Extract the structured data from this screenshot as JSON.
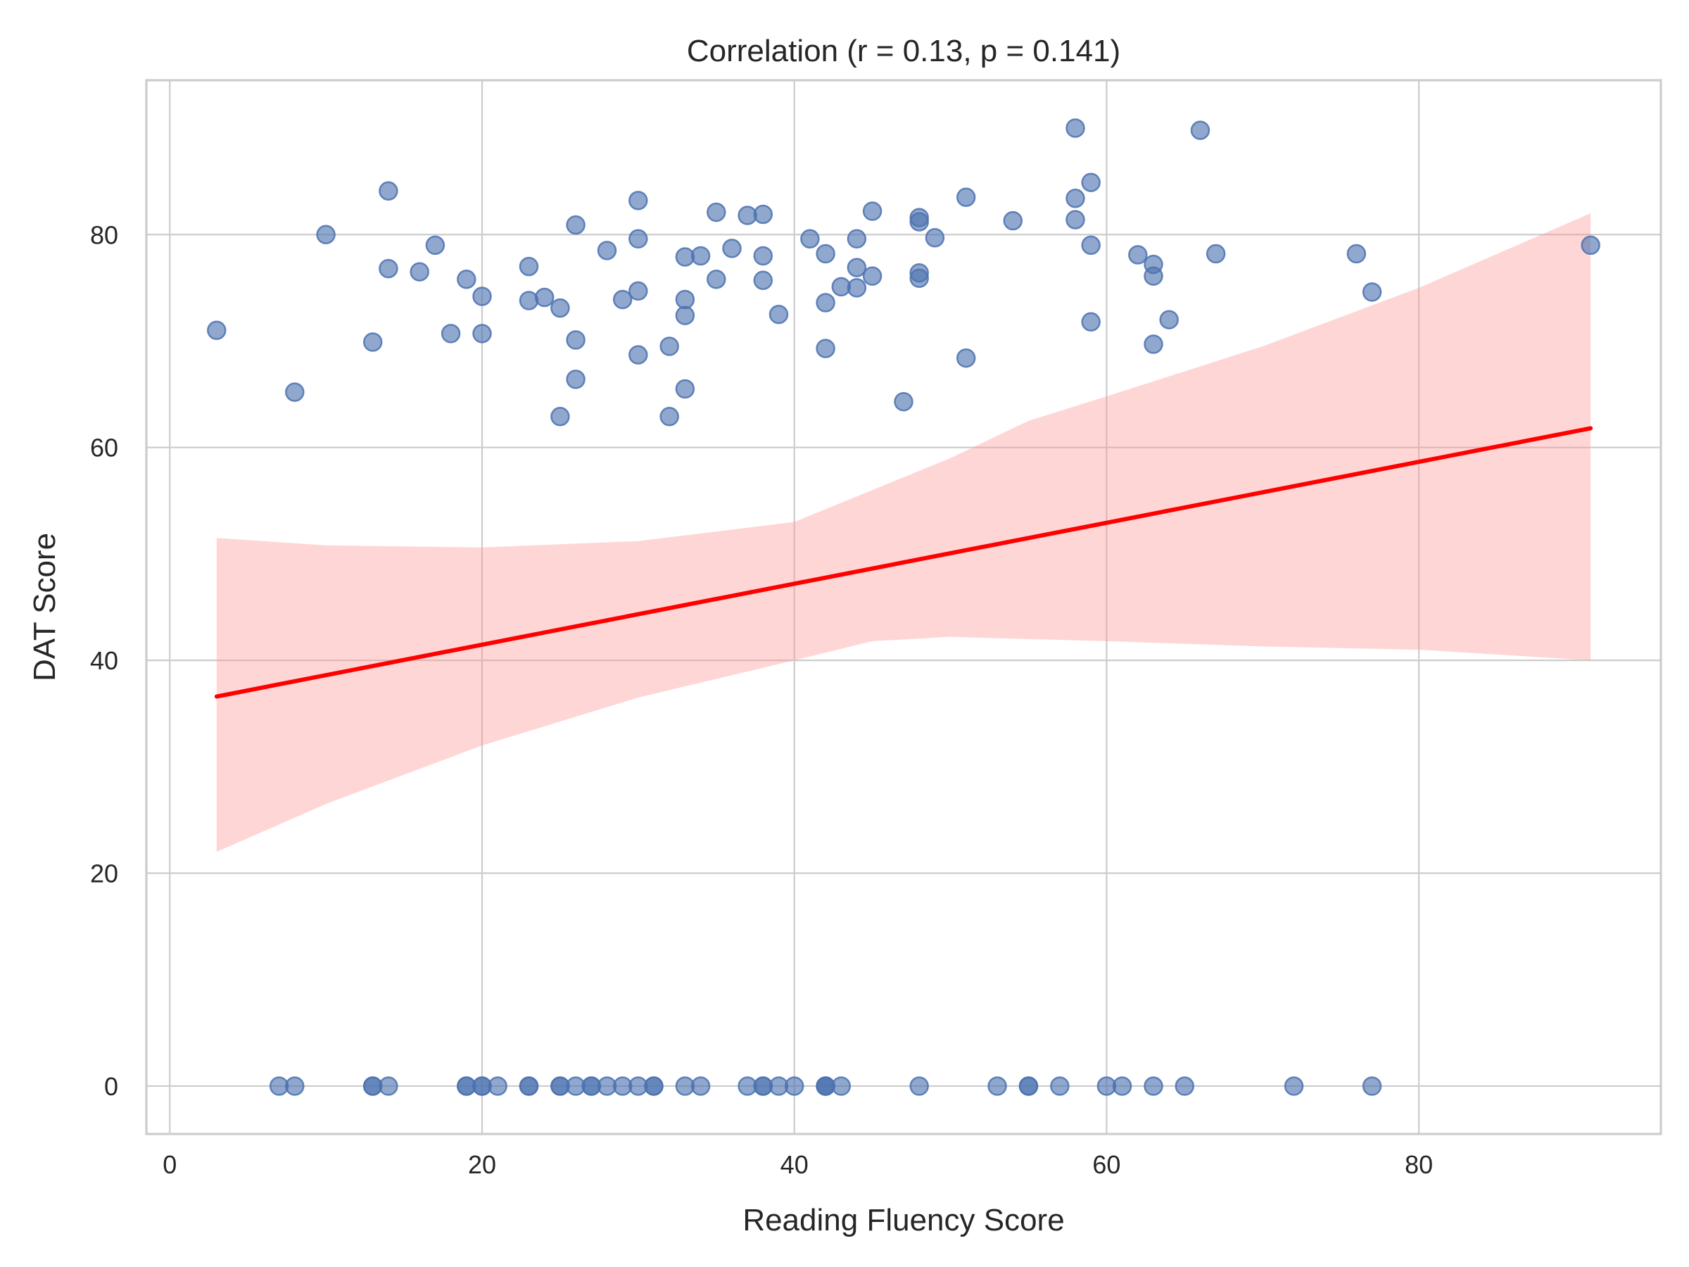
{
  "chart_data": {
    "type": "scatter",
    "title": "Correlation (r = 0.13, p = 0.141)",
    "xlabel": "Reading Fluency Score",
    "ylabel": "DAT Score",
    "xlim": [
      -1.5,
      95.5
    ],
    "ylim": [
      -4.5,
      94.5
    ],
    "xticks": [
      0,
      20,
      40,
      60,
      80
    ],
    "yticks": [
      0,
      20,
      40,
      60,
      80
    ],
    "grid": true,
    "colors": {
      "points": "#4c72b0",
      "regression_line": "#ff0000",
      "confidence_band": "#ff9999",
      "grid": "#cccccc"
    },
    "series": [
      {
        "points": [
          [
            3,
            71.0
          ],
          [
            8,
            65.2
          ],
          [
            10,
            80.0
          ],
          [
            13,
            69.9
          ],
          [
            14,
            84.1
          ],
          [
            14,
            76.8
          ],
          [
            16,
            76.5
          ],
          [
            17,
            79.0
          ],
          [
            18,
            70.7
          ],
          [
            19,
            75.8
          ],
          [
            20,
            74.2
          ],
          [
            20,
            70.7
          ],
          [
            23,
            77.0
          ],
          [
            23,
            73.8
          ],
          [
            24,
            74.1
          ],
          [
            25,
            73.1
          ],
          [
            25,
            62.9
          ],
          [
            26,
            80.9
          ],
          [
            26,
            70.1
          ],
          [
            26,
            66.4
          ],
          [
            28,
            78.5
          ],
          [
            29,
            73.9
          ],
          [
            30,
            83.2
          ],
          [
            30,
            79.6
          ],
          [
            30,
            74.7
          ],
          [
            30,
            68.7
          ],
          [
            32,
            69.5
          ],
          [
            32,
            62.9
          ],
          [
            33,
            77.9
          ],
          [
            33,
            73.9
          ],
          [
            33,
            72.4
          ],
          [
            33,
            65.5
          ],
          [
            34,
            78.0
          ],
          [
            35,
            82.1
          ],
          [
            35,
            75.8
          ],
          [
            36,
            78.7
          ],
          [
            37,
            81.8
          ],
          [
            38,
            81.9
          ],
          [
            38,
            78.0
          ],
          [
            38,
            75.7
          ],
          [
            39,
            72.5
          ],
          [
            41,
            79.6
          ],
          [
            42,
            78.2
          ],
          [
            42,
            73.6
          ],
          [
            42,
            69.3
          ],
          [
            43,
            75.1
          ],
          [
            44,
            79.6
          ],
          [
            44,
            76.9
          ],
          [
            44,
            75.0
          ],
          [
            45,
            82.2
          ],
          [
            45,
            76.1
          ],
          [
            47,
            64.3
          ],
          [
            48,
            81.6
          ],
          [
            48,
            81.2
          ],
          [
            48,
            76.4
          ],
          [
            48,
            75.9
          ],
          [
            49,
            79.7
          ],
          [
            51,
            83.5
          ],
          [
            51,
            68.4
          ],
          [
            54,
            81.3
          ],
          [
            58,
            90.0
          ],
          [
            58,
            83.4
          ],
          [
            58,
            81.4
          ],
          [
            59,
            84.9
          ],
          [
            59,
            79.0
          ],
          [
            59,
            71.8
          ],
          [
            62,
            78.1
          ],
          [
            63,
            77.2
          ],
          [
            63,
            76.1
          ],
          [
            63,
            69.7
          ],
          [
            64,
            72.0
          ],
          [
            66,
            89.8
          ],
          [
            67,
            78.2
          ],
          [
            76,
            78.2
          ],
          [
            77,
            74.6
          ],
          [
            91,
            79.0
          ],
          [
            7,
            0
          ],
          [
            8,
            0
          ],
          [
            13,
            0
          ],
          [
            13,
            0
          ],
          [
            14,
            0
          ],
          [
            19,
            0
          ],
          [
            19,
            0
          ],
          [
            20,
            0
          ],
          [
            20,
            0
          ],
          [
            21,
            0
          ],
          [
            23,
            0
          ],
          [
            23,
            0
          ],
          [
            25,
            0
          ],
          [
            25,
            0
          ],
          [
            26,
            0
          ],
          [
            27,
            0
          ],
          [
            27,
            0
          ],
          [
            28,
            0
          ],
          [
            29,
            0
          ],
          [
            30,
            0
          ],
          [
            31,
            0
          ],
          [
            31,
            0
          ],
          [
            33,
            0
          ],
          [
            34,
            0
          ],
          [
            37,
            0
          ],
          [
            38,
            0
          ],
          [
            38,
            0
          ],
          [
            39,
            0
          ],
          [
            40,
            0
          ],
          [
            42,
            0
          ],
          [
            42,
            0
          ],
          [
            42,
            0
          ],
          [
            43,
            0
          ],
          [
            48,
            0
          ],
          [
            53,
            0
          ],
          [
            55,
            0
          ],
          [
            55,
            0
          ],
          [
            57,
            0
          ],
          [
            60,
            0
          ],
          [
            61,
            0
          ],
          [
            63,
            0
          ],
          [
            65,
            0
          ],
          [
            72,
            0
          ],
          [
            77,
            0
          ]
        ]
      }
    ],
    "regression_line": {
      "x": [
        3,
        91
      ],
      "y": [
        36.6,
        61.8
      ]
    },
    "confidence_band": {
      "x": [
        3,
        10,
        20,
        30,
        40,
        45,
        50,
        55,
        60,
        70,
        80,
        91
      ],
      "lower": [
        22.0,
        26.5,
        32.0,
        36.5,
        40.0,
        41.8,
        42.2,
        42.0,
        41.8,
        41.3,
        41.0,
        40.0
      ],
      "upper": [
        51.5,
        50.8,
        50.6,
        51.2,
        53.0,
        56.0,
        59.0,
        62.5,
        64.8,
        69.5,
        75.0,
        82.0
      ]
    }
  }
}
